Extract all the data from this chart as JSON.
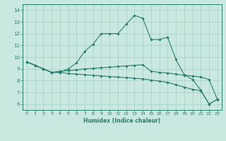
{
  "xlabel": "Humidex (Indice chaleur)",
  "ylabel": "",
  "x": [
    0,
    1,
    2,
    3,
    4,
    5,
    6,
    7,
    8,
    9,
    10,
    11,
    12,
    13,
    14,
    15,
    16,
    17,
    18,
    19,
    20,
    21,
    22,
    23
  ],
  "line1": [
    9.6,
    9.3,
    9.0,
    8.7,
    8.7,
    9.0,
    9.5,
    10.5,
    11.1,
    12.0,
    12.0,
    12.0,
    12.8,
    13.55,
    13.3,
    11.5,
    11.5,
    11.7,
    9.8,
    8.5,
    8.1,
    7.2,
    6.0,
    6.4
  ],
  "line2": [
    9.6,
    9.3,
    9.0,
    8.7,
    8.8,
    8.85,
    8.9,
    9.0,
    9.05,
    9.1,
    9.15,
    9.2,
    9.25,
    9.3,
    9.35,
    8.8,
    8.7,
    8.65,
    8.55,
    8.45,
    8.4,
    8.3,
    8.1,
    6.4
  ],
  "line3": [
    9.6,
    9.3,
    9.0,
    8.7,
    8.7,
    8.6,
    8.55,
    8.5,
    8.45,
    8.4,
    8.35,
    8.3,
    8.25,
    8.2,
    8.15,
    8.05,
    7.95,
    7.85,
    7.65,
    7.45,
    7.25,
    7.15,
    6.0,
    6.4
  ],
  "line_color": "#2a7d6c",
  "bg_color": "#c8e8e0",
  "grid_color": "#a8cdc5",
  "ylim": [
    5.5,
    14.5
  ],
  "xlim": [
    -0.5,
    23.5
  ],
  "yticks": [
    6,
    7,
    8,
    9,
    10,
    11,
    12,
    13,
    14
  ],
  "xticks": [
    0,
    1,
    2,
    3,
    4,
    5,
    6,
    7,
    8,
    9,
    10,
    11,
    12,
    13,
    14,
    15,
    16,
    17,
    18,
    19,
    20,
    21,
    22,
    23
  ]
}
